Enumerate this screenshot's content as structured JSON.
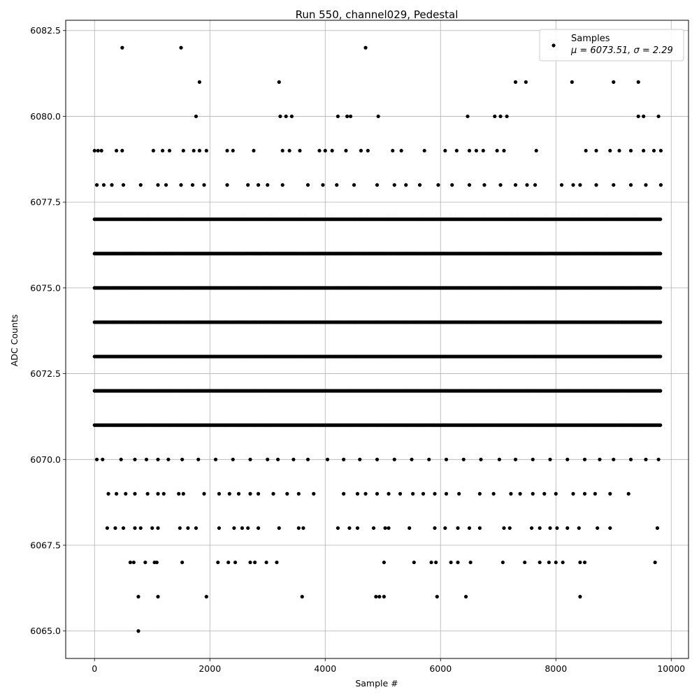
{
  "chart_data": {
    "type": "scatter",
    "title": "Run 550, channel029, Pedestal",
    "xlabel": "Sample #",
    "ylabel": "ADC Counts",
    "xlim": [
      -500,
      10300
    ],
    "ylim": [
      6064.2,
      6082.8
    ],
    "xticks": [
      0,
      2000,
      4000,
      6000,
      8000,
      10000
    ],
    "yticks": [
      6065.0,
      6067.5,
      6070.0,
      6072.5,
      6075.0,
      6077.5,
      6080.0,
      6082.5
    ],
    "grid": true,
    "legend": {
      "position": "top-right",
      "entries": [
        "Samples",
        "μ = 6073.51, σ = 2.29"
      ]
    },
    "marker_color": "#000000",
    "series": [
      {
        "name": "Samples",
        "dense_levels": [
          {
            "y": 6076,
            "x_range": [
              0,
              9830
            ]
          },
          {
            "y": 6075,
            "x_range": [
              0,
              9830
            ]
          },
          {
            "y": 6074,
            "x_range": [
              0,
              9830
            ]
          },
          {
            "y": 6073,
            "x_range": [
              0,
              9830
            ]
          },
          {
            "y": 6072,
            "x_range": [
              0,
              9830
            ]
          },
          {
            "y": 6077,
            "x_range": [
              0,
              9830
            ]
          },
          {
            "y": 6071,
            "x_range": [
              0,
              9830
            ]
          }
        ],
        "points": [
          [
            480,
            6082
          ],
          [
            1500,
            6082
          ],
          [
            4700,
            6082
          ],
          [
            1820,
            6081
          ],
          [
            3200,
            6081
          ],
          [
            7300,
            6081
          ],
          [
            7480,
            6081
          ],
          [
            8280,
            6081
          ],
          [
            9000,
            6081
          ],
          [
            9430,
            6081
          ],
          [
            1760,
            6080
          ],
          [
            3220,
            6080
          ],
          [
            3320,
            6080
          ],
          [
            3420,
            6080
          ],
          [
            4220,
            6080
          ],
          [
            4380,
            6080
          ],
          [
            4440,
            6080
          ],
          [
            4920,
            6080
          ],
          [
            6470,
            6080
          ],
          [
            6940,
            6080
          ],
          [
            7040,
            6080
          ],
          [
            7150,
            6080
          ],
          [
            9430,
            6080
          ],
          [
            9520,
            6080
          ],
          [
            9780,
            6080
          ],
          [
            0,
            6079
          ],
          [
            60,
            6079
          ],
          [
            120,
            6079
          ],
          [
            380,
            6079
          ],
          [
            480,
            6079
          ],
          [
            1020,
            6079
          ],
          [
            1180,
            6079
          ],
          [
            1300,
            6079
          ],
          [
            1540,
            6079
          ],
          [
            1720,
            6079
          ],
          [
            1820,
            6079
          ],
          [
            1940,
            6079
          ],
          [
            2300,
            6079
          ],
          [
            2400,
            6079
          ],
          [
            2760,
            6079
          ],
          [
            3260,
            6079
          ],
          [
            3380,
            6079
          ],
          [
            3560,
            6079
          ],
          [
            3900,
            6079
          ],
          [
            4000,
            6079
          ],
          [
            4120,
            6079
          ],
          [
            4360,
            6079
          ],
          [
            4620,
            6079
          ],
          [
            4740,
            6079
          ],
          [
            5170,
            6079
          ],
          [
            5320,
            6079
          ],
          [
            5720,
            6079
          ],
          [
            6080,
            6079
          ],
          [
            6280,
            6079
          ],
          [
            6500,
            6079
          ],
          [
            6620,
            6079
          ],
          [
            6740,
            6079
          ],
          [
            6980,
            6079
          ],
          [
            7100,
            6079
          ],
          [
            7660,
            6079
          ],
          [
            8520,
            6079
          ],
          [
            8700,
            6079
          ],
          [
            8940,
            6079
          ],
          [
            9100,
            6079
          ],
          [
            9300,
            6079
          ],
          [
            9520,
            6079
          ],
          [
            9700,
            6079
          ],
          [
            9820,
            6079
          ],
          [
            40,
            6078
          ],
          [
            160,
            6078
          ],
          [
            300,
            6078
          ],
          [
            500,
            6078
          ],
          [
            800,
            6078
          ],
          [
            1100,
            6078
          ],
          [
            1240,
            6078
          ],
          [
            1500,
            6078
          ],
          [
            1700,
            6078
          ],
          [
            1900,
            6078
          ],
          [
            2300,
            6078
          ],
          [
            2660,
            6078
          ],
          [
            2840,
            6078
          ],
          [
            3000,
            6078
          ],
          [
            3260,
            6078
          ],
          [
            3700,
            6078
          ],
          [
            3960,
            6078
          ],
          [
            4200,
            6078
          ],
          [
            4500,
            6078
          ],
          [
            4900,
            6078
          ],
          [
            5200,
            6078
          ],
          [
            5400,
            6078
          ],
          [
            5640,
            6078
          ],
          [
            5960,
            6078
          ],
          [
            6200,
            6078
          ],
          [
            6500,
            6078
          ],
          [
            6760,
            6078
          ],
          [
            7040,
            6078
          ],
          [
            7300,
            6078
          ],
          [
            7500,
            6078
          ],
          [
            7640,
            6078
          ],
          [
            8100,
            6078
          ],
          [
            8300,
            6078
          ],
          [
            8420,
            6078
          ],
          [
            8700,
            6078
          ],
          [
            9000,
            6078
          ],
          [
            9300,
            6078
          ],
          [
            9560,
            6078
          ],
          [
            9820,
            6078
          ],
          [
            40,
            6070
          ],
          [
            140,
            6070
          ],
          [
            460,
            6070
          ],
          [
            700,
            6070
          ],
          [
            900,
            6070
          ],
          [
            1100,
            6070
          ],
          [
            1280,
            6070
          ],
          [
            1520,
            6070
          ],
          [
            1800,
            6070
          ],
          [
            2100,
            6070
          ],
          [
            2400,
            6070
          ],
          [
            2700,
            6070
          ],
          [
            3000,
            6070
          ],
          [
            3180,
            6070
          ],
          [
            3450,
            6070
          ],
          [
            3700,
            6070
          ],
          [
            4040,
            6070
          ],
          [
            4320,
            6070
          ],
          [
            4600,
            6070
          ],
          [
            4900,
            6070
          ],
          [
            5200,
            6070
          ],
          [
            5500,
            6070
          ],
          [
            5800,
            6070
          ],
          [
            6100,
            6070
          ],
          [
            6400,
            6070
          ],
          [
            6700,
            6070
          ],
          [
            7020,
            6070
          ],
          [
            7300,
            6070
          ],
          [
            7600,
            6070
          ],
          [
            7900,
            6070
          ],
          [
            8200,
            6070
          ],
          [
            8500,
            6070
          ],
          [
            8760,
            6070
          ],
          [
            9000,
            6070
          ],
          [
            9300,
            6070
          ],
          [
            9560,
            6070
          ],
          [
            9780,
            6070
          ],
          [
            240,
            6069
          ],
          [
            380,
            6069
          ],
          [
            540,
            6069
          ],
          [
            700,
            6069
          ],
          [
            920,
            6069
          ],
          [
            1100,
            6069
          ],
          [
            1200,
            6069
          ],
          [
            1460,
            6069
          ],
          [
            1540,
            6069
          ],
          [
            1900,
            6069
          ],
          [
            2160,
            6069
          ],
          [
            2340,
            6069
          ],
          [
            2500,
            6069
          ],
          [
            2700,
            6069
          ],
          [
            2840,
            6069
          ],
          [
            3100,
            6069
          ],
          [
            3340,
            6069
          ],
          [
            3540,
            6069
          ],
          [
            3800,
            6069
          ],
          [
            4320,
            6069
          ],
          [
            4560,
            6069
          ],
          [
            4700,
            6069
          ],
          [
            4900,
            6069
          ],
          [
            5100,
            6069
          ],
          [
            5300,
            6069
          ],
          [
            5520,
            6069
          ],
          [
            5700,
            6069
          ],
          [
            5900,
            6069
          ],
          [
            6100,
            6069
          ],
          [
            6320,
            6069
          ],
          [
            6680,
            6069
          ],
          [
            6920,
            6069
          ],
          [
            7220,
            6069
          ],
          [
            7380,
            6069
          ],
          [
            7600,
            6069
          ],
          [
            7800,
            6069
          ],
          [
            8000,
            6069
          ],
          [
            8300,
            6069
          ],
          [
            8500,
            6069
          ],
          [
            8680,
            6069
          ],
          [
            8940,
            6069
          ],
          [
            9260,
            6069
          ],
          [
            220,
            6068
          ],
          [
            360,
            6068
          ],
          [
            500,
            6068
          ],
          [
            700,
            6068
          ],
          [
            800,
            6068
          ],
          [
            1000,
            6068
          ],
          [
            1100,
            6068
          ],
          [
            1480,
            6068
          ],
          [
            1620,
            6068
          ],
          [
            1760,
            6068
          ],
          [
            2160,
            6068
          ],
          [
            2420,
            6068
          ],
          [
            2560,
            6068
          ],
          [
            2660,
            6068
          ],
          [
            2840,
            6068
          ],
          [
            3200,
            6068
          ],
          [
            3540,
            6068
          ],
          [
            3620,
            6068
          ],
          [
            4220,
            6068
          ],
          [
            4420,
            6068
          ],
          [
            4560,
            6068
          ],
          [
            4840,
            6068
          ],
          [
            5040,
            6068
          ],
          [
            5100,
            6068
          ],
          [
            5460,
            6068
          ],
          [
            5900,
            6068
          ],
          [
            6080,
            6068
          ],
          [
            6300,
            6068
          ],
          [
            6500,
            6068
          ],
          [
            6680,
            6068
          ],
          [
            7100,
            6068
          ],
          [
            7200,
            6068
          ],
          [
            7580,
            6068
          ],
          [
            7720,
            6068
          ],
          [
            7900,
            6068
          ],
          [
            8020,
            6068
          ],
          [
            8200,
            6068
          ],
          [
            8400,
            6068
          ],
          [
            8720,
            6068
          ],
          [
            8940,
            6068
          ],
          [
            9760,
            6068
          ],
          [
            620,
            6067
          ],
          [
            680,
            6067
          ],
          [
            880,
            6067
          ],
          [
            1040,
            6067
          ],
          [
            1080,
            6067
          ],
          [
            1520,
            6067
          ],
          [
            2140,
            6067
          ],
          [
            2320,
            6067
          ],
          [
            2440,
            6067
          ],
          [
            2700,
            6067
          ],
          [
            2780,
            6067
          ],
          [
            2980,
            6067
          ],
          [
            3160,
            6067
          ],
          [
            5020,
            6067
          ],
          [
            5540,
            6067
          ],
          [
            5840,
            6067
          ],
          [
            5920,
            6067
          ],
          [
            6180,
            6067
          ],
          [
            6300,
            6067
          ],
          [
            6520,
            6067
          ],
          [
            7080,
            6067
          ],
          [
            7460,
            6067
          ],
          [
            7720,
            6067
          ],
          [
            7880,
            6067
          ],
          [
            8000,
            6067
          ],
          [
            8120,
            6067
          ],
          [
            8420,
            6067
          ],
          [
            8500,
            6067
          ],
          [
            9720,
            6067
          ],
          [
            760,
            6066
          ],
          [
            1100,
            6066
          ],
          [
            1940,
            6066
          ],
          [
            3600,
            6066
          ],
          [
            4880,
            6066
          ],
          [
            4940,
            6066
          ],
          [
            5020,
            6066
          ],
          [
            5940,
            6066
          ],
          [
            6440,
            6066
          ],
          [
            8420,
            6066
          ],
          [
            760,
            6065
          ]
        ]
      }
    ]
  }
}
